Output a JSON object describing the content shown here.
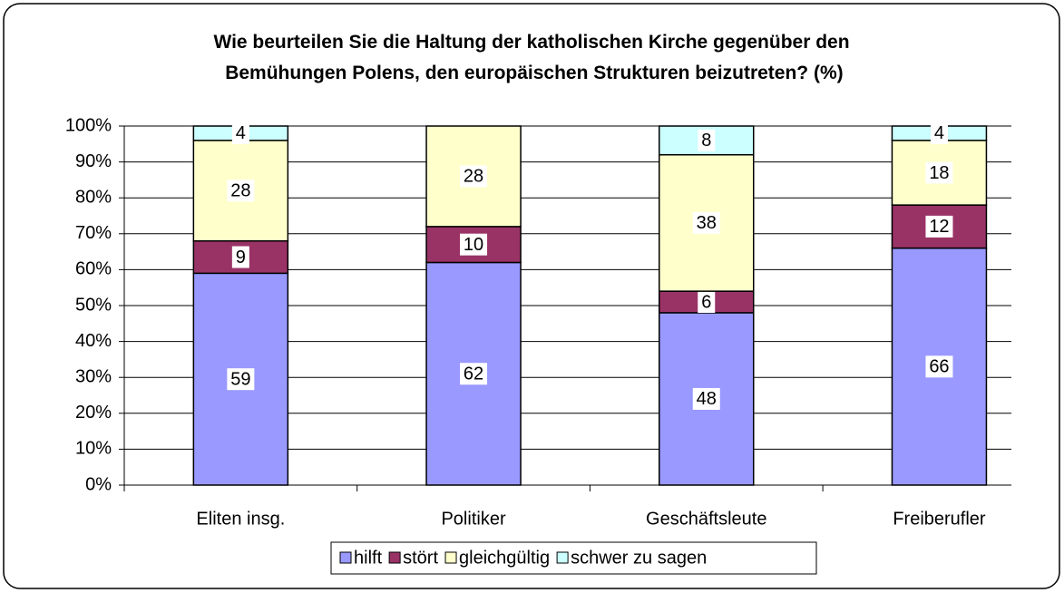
{
  "chart_data": {
    "type": "stacked_bar",
    "title": "Wie beurteilen Sie die Haltung der katholischen Kirche gegenüber den Bemühungen Polens, den europäischen Strukturen beizutreten? (%)",
    "categories": [
      "Eliten insg.",
      "Politiker",
      "Geschäftsleute",
      "Freiberufler"
    ],
    "series": [
      {
        "name": "hilft",
        "color": "#9999ff",
        "values": [
          59,
          62,
          48,
          66
        ]
      },
      {
        "name": "stört",
        "color": "#993366",
        "values": [
          9,
          10,
          6,
          12
        ]
      },
      {
        "name": "gleichgültig",
        "color": "#ffffcc",
        "values": [
          28,
          28,
          38,
          18
        ]
      },
      {
        "name": "schwer zu sagen",
        "color": "#ccffff",
        "values": [
          4,
          null,
          8,
          4
        ]
      }
    ],
    "ylim": [
      0,
      100
    ],
    "yticks": [
      {
        "value": 0,
        "label": "0%"
      },
      {
        "value": 10,
        "label": "10%"
      },
      {
        "value": 20,
        "label": "20%"
      },
      {
        "value": 30,
        "label": "30%"
      },
      {
        "value": 40,
        "label": "40%"
      },
      {
        "value": 50,
        "label": "50%"
      },
      {
        "value": 60,
        "label": "60%"
      },
      {
        "value": 70,
        "label": "70%"
      },
      {
        "value": 80,
        "label": "80%"
      },
      {
        "value": 90,
        "label": "90%"
      },
      {
        "value": 100,
        "label": "100%"
      }
    ],
    "grid": true,
    "legend": "bottom"
  }
}
